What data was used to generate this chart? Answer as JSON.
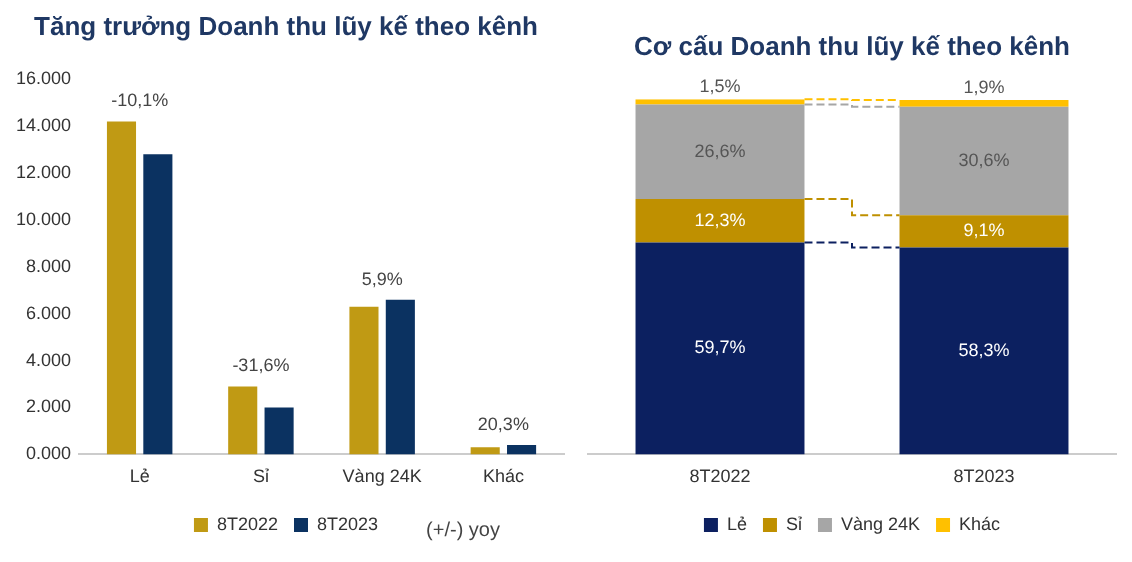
{
  "chart_data": [
    {
      "type": "bar",
      "title": "Tăng trưởng Doanh thu lũy kế theo kênh",
      "categories": [
        "Lẻ",
        "Sỉ",
        "Vàng 24K",
        "Khác"
      ],
      "series": [
        {
          "name": "8T2022",
          "color": "#c09a14",
          "values": [
            14200,
            2900,
            6300,
            300
          ]
        },
        {
          "name": "8T2023",
          "color": "#0b3261",
          "values": [
            12800,
            2000,
            6600,
            400
          ]
        }
      ],
      "ylim": [
        0,
        16000
      ],
      "yticks": [
        {
          "value": 0,
          "label": "0.000"
        },
        {
          "value": 2000,
          "label": "2.000"
        },
        {
          "value": 4000,
          "label": "4.000"
        },
        {
          "value": 6000,
          "label": "6.000"
        },
        {
          "value": 8000,
          "label": "8.000"
        },
        {
          "value": 10000,
          "label": "10.000"
        },
        {
          "value": 12000,
          "label": "12.000"
        },
        {
          "value": 14000,
          "label": "14.000"
        },
        {
          "value": 16000,
          "label": "16.000"
        }
      ],
      "grid": false,
      "legend": "bottom",
      "annotations": [
        {
          "text": "-10,1%",
          "x": "Lẻ",
          "y": 14200
        },
        {
          "text": "-31,6%",
          "x": "Sỉ",
          "y": 2900
        },
        {
          "text": "5,9%",
          "x": "Vàng 24K",
          "y": 6600
        },
        {
          "text": "20,3%",
          "x": "Khác",
          "y": 400
        },
        "(+/-) yoy"
      ]
    },
    {
      "type": "bar",
      "stacked": true,
      "title": "Cơ cấu Doanh thu lũy kế theo kênh",
      "categories": [
        "8T2022",
        "8T2023"
      ],
      "series": [
        {
          "name": "Lẻ",
          "color": "#0c2060",
          "values": [
            59.7,
            58.3
          ],
          "value_labels": [
            "59,7%",
            "58,3%"
          ]
        },
        {
          "name": "Sỉ",
          "color": "#bf9000",
          "values": [
            12.3,
            9.1
          ],
          "value_labels": [
            "12,3%",
            "9,1%"
          ]
        },
        {
          "name": "Vàng 24K",
          "color": "#a6a6a6",
          "values": [
            26.6,
            30.6
          ],
          "value_labels": [
            "26,6%",
            "30,6%"
          ]
        },
        {
          "name": "Khác",
          "color": "#ffc000",
          "values": [
            1.5,
            1.9
          ],
          "value_labels": [
            "1,5%",
            "1,9%"
          ]
        }
      ],
      "grid": false,
      "legend": "bottom",
      "tick_labels": "x"
    }
  ]
}
